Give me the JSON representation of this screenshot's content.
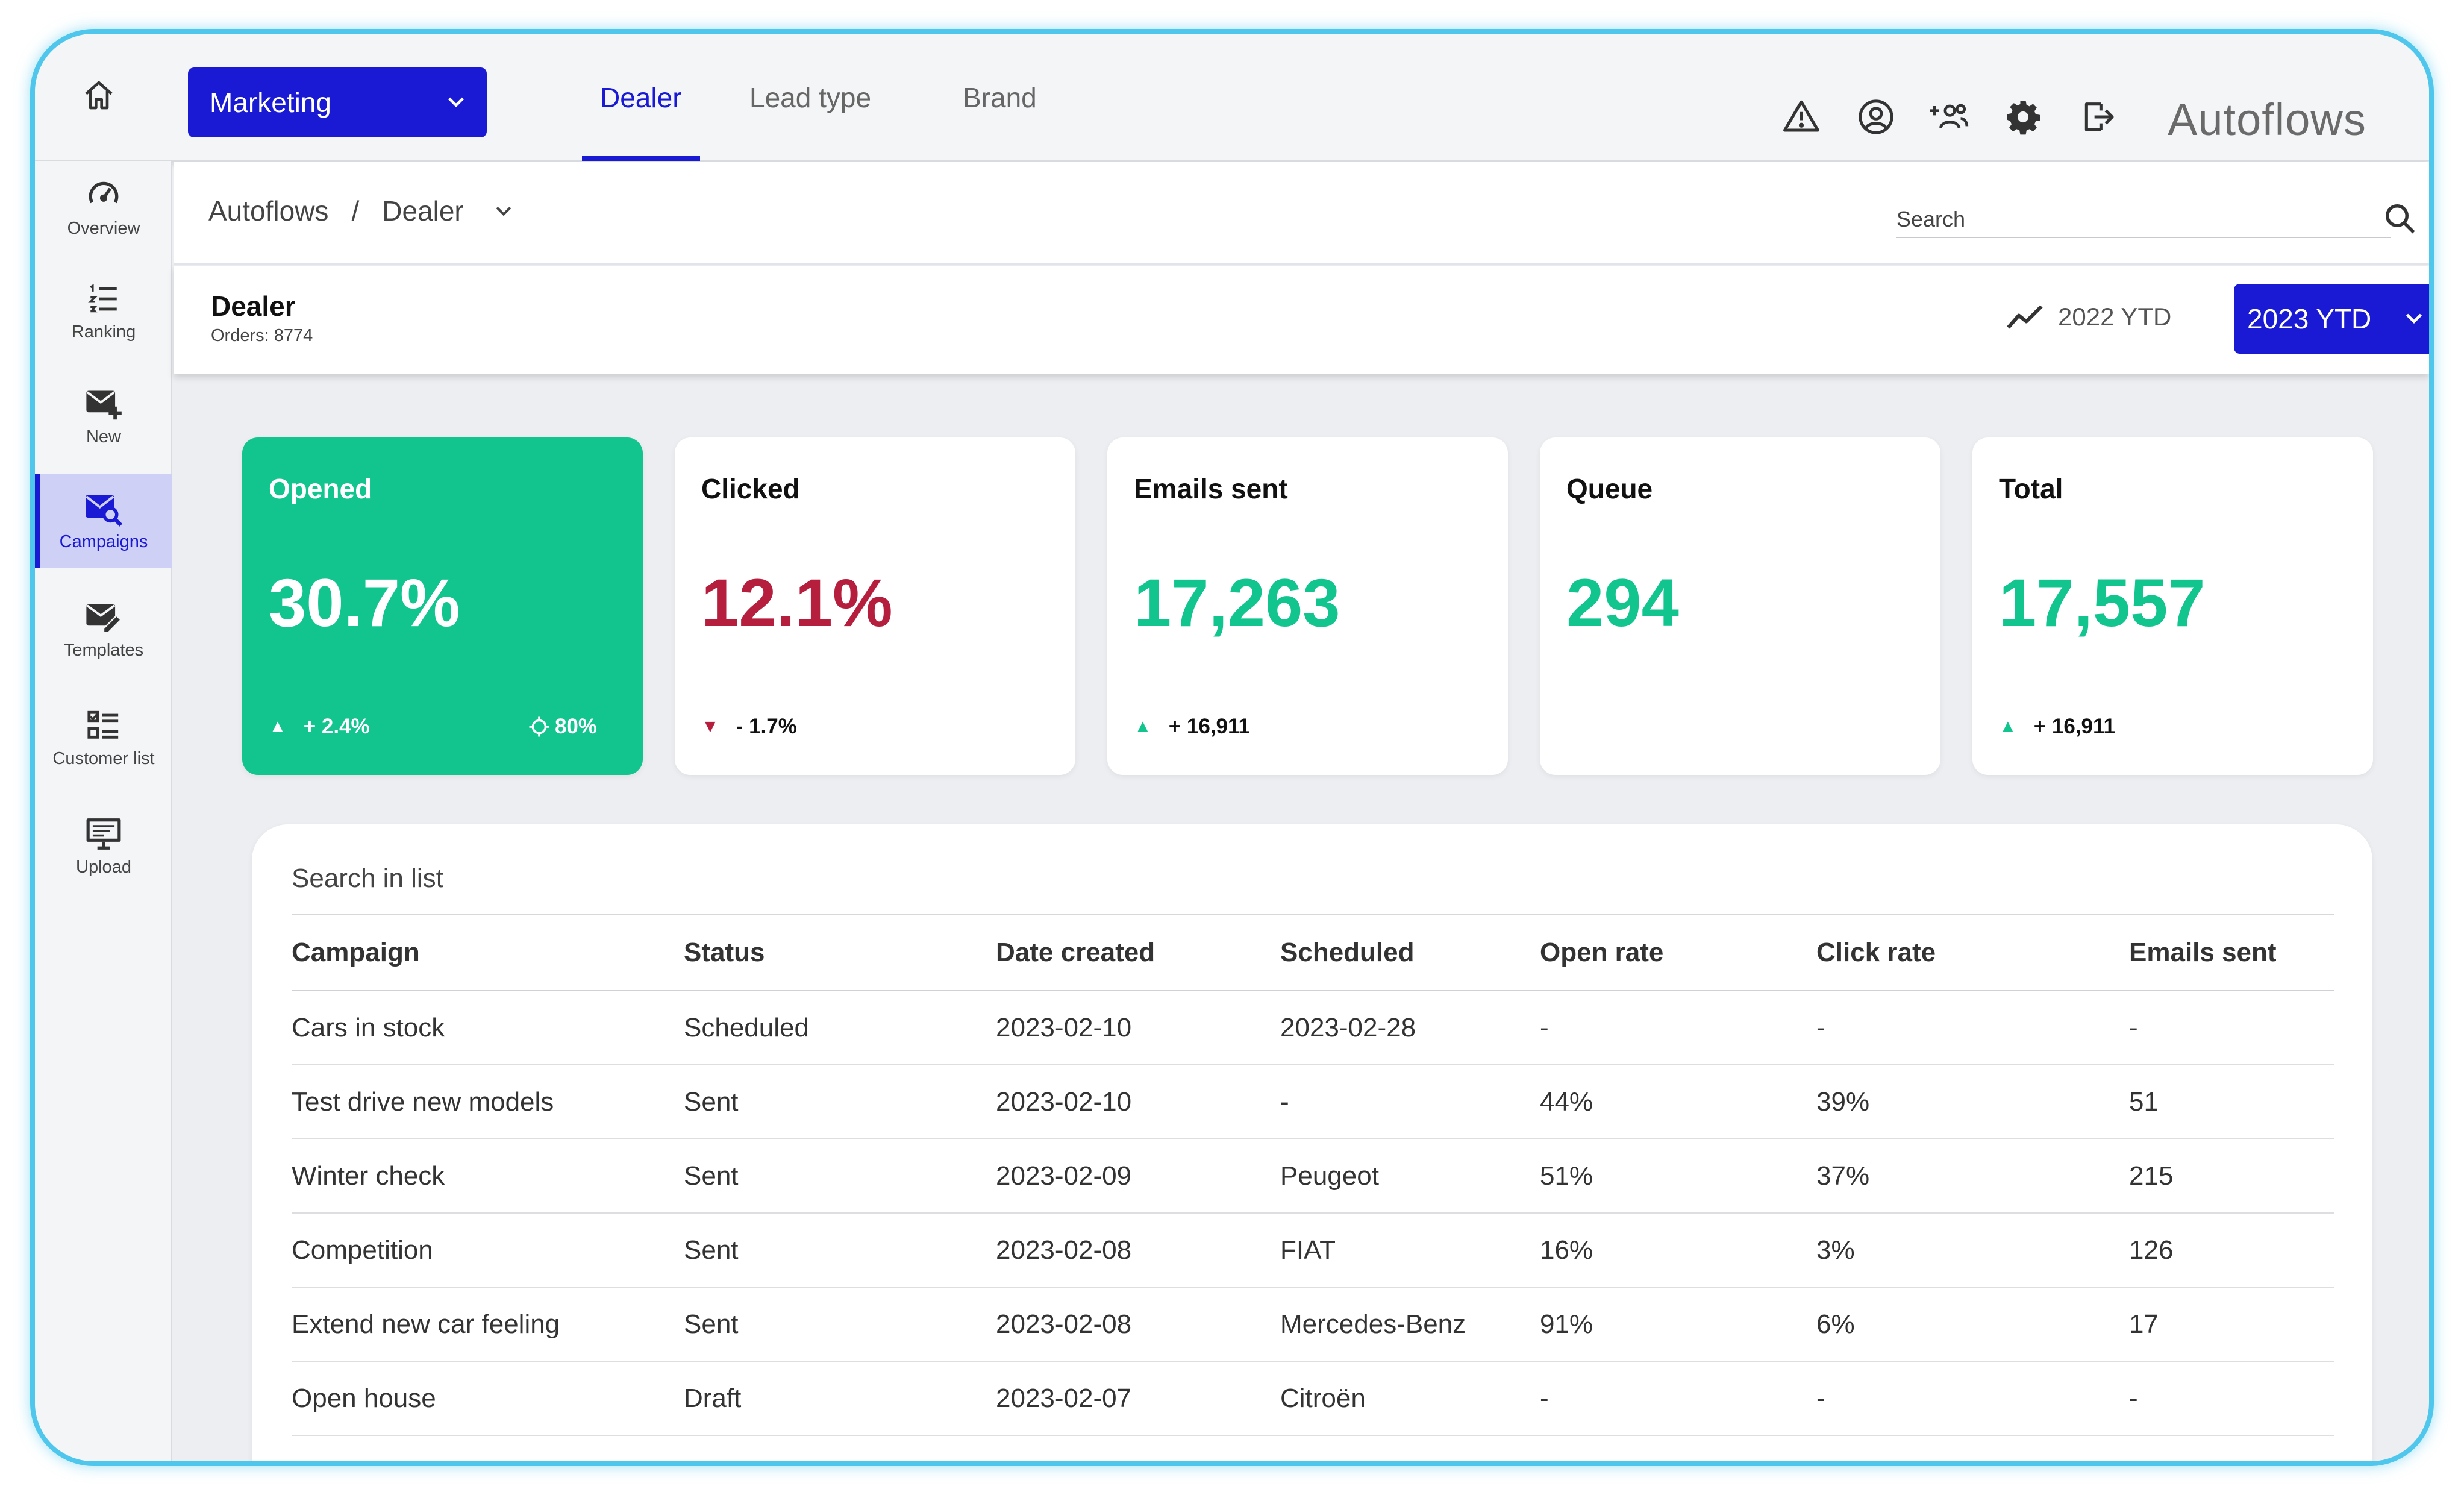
{
  "app": {
    "brand": "Autoflows"
  },
  "topbar": {
    "select": {
      "value": "Marketing"
    },
    "tabs": [
      {
        "label": "Dealer",
        "active": true
      },
      {
        "label": "Lead type",
        "active": false
      },
      {
        "label": "Brand",
        "active": false
      }
    ],
    "icons": [
      "home-icon",
      "warning-icon",
      "user-circle-icon",
      "add-group-icon",
      "gear-icon",
      "logout-icon"
    ]
  },
  "sidebar": {
    "items": [
      {
        "label": "Overview",
        "icon": "speedometer-icon",
        "active": false
      },
      {
        "label": "Ranking",
        "icon": "ranked-list-icon",
        "active": false
      },
      {
        "label": "New",
        "icon": "mail-plus-icon",
        "active": false
      },
      {
        "label": "Campaigns",
        "icon": "mail-search-icon",
        "active": true
      },
      {
        "label": "Templates",
        "icon": "mail-edit-icon",
        "active": false
      },
      {
        "label": "Customer list",
        "icon": "checklist-icon",
        "active": false
      },
      {
        "label": "Upload",
        "icon": "monitor-upload-icon",
        "active": false
      }
    ]
  },
  "breadcrumb": {
    "root": "Autoflows",
    "separator": "/",
    "current": "Dealer"
  },
  "search": {
    "placeholder": "Search"
  },
  "page": {
    "title": "Dealer",
    "subtitle": "Orders: 8774",
    "compare_label": "2022 YTD",
    "period": "2023 YTD"
  },
  "kpis": [
    {
      "label": "Opened",
      "value": "30.7%",
      "delta": "+ 2.4%",
      "trend": "up",
      "target": "80%",
      "highlight": true
    },
    {
      "label": "Clicked",
      "value": "12.1%",
      "delta": "- 1.7%",
      "trend": "down"
    },
    {
      "label": "Emails sent",
      "value": "17,263",
      "delta": "+ 16,911",
      "trend": "up"
    },
    {
      "label": "Queue",
      "value": "294",
      "delta": "",
      "trend": "none"
    },
    {
      "label": "Total",
      "value": "17,557",
      "delta": "+ 16,911",
      "trend": "up"
    }
  ],
  "colors": {
    "accent": "#1a1ad4",
    "positive": "#12c58f",
    "negative": "#b51f3d",
    "frame": "#4fc6ec"
  },
  "table": {
    "search_placeholder": "Search in list",
    "columns": [
      "Campaign",
      "Status",
      "Date created",
      "Scheduled",
      "Open rate",
      "Click rate",
      "Emails sent"
    ],
    "rows": [
      [
        "Cars in stock",
        "Scheduled",
        "2023-02-10",
        "2023-02-28",
        "-",
        "-",
        "-"
      ],
      [
        "Test drive new models",
        "Sent",
        "2023-02-10",
        "-",
        "44%",
        "39%",
        "51"
      ],
      [
        "Winter check",
        "Sent",
        "2023-02-09",
        "Peugeot",
        "51%",
        "37%",
        "215"
      ],
      [
        "Competition",
        "Sent",
        "2023-02-08",
        "FIAT",
        "16%",
        "3%",
        "126"
      ],
      [
        "Extend new car feeling",
        "Sent",
        "2023-02-08",
        "Mercedes-Benz",
        "91%",
        "6%",
        "17"
      ],
      [
        "Open house",
        "Draft",
        "2023-02-07",
        "Citroën",
        "-",
        "-",
        "-"
      ]
    ]
  }
}
